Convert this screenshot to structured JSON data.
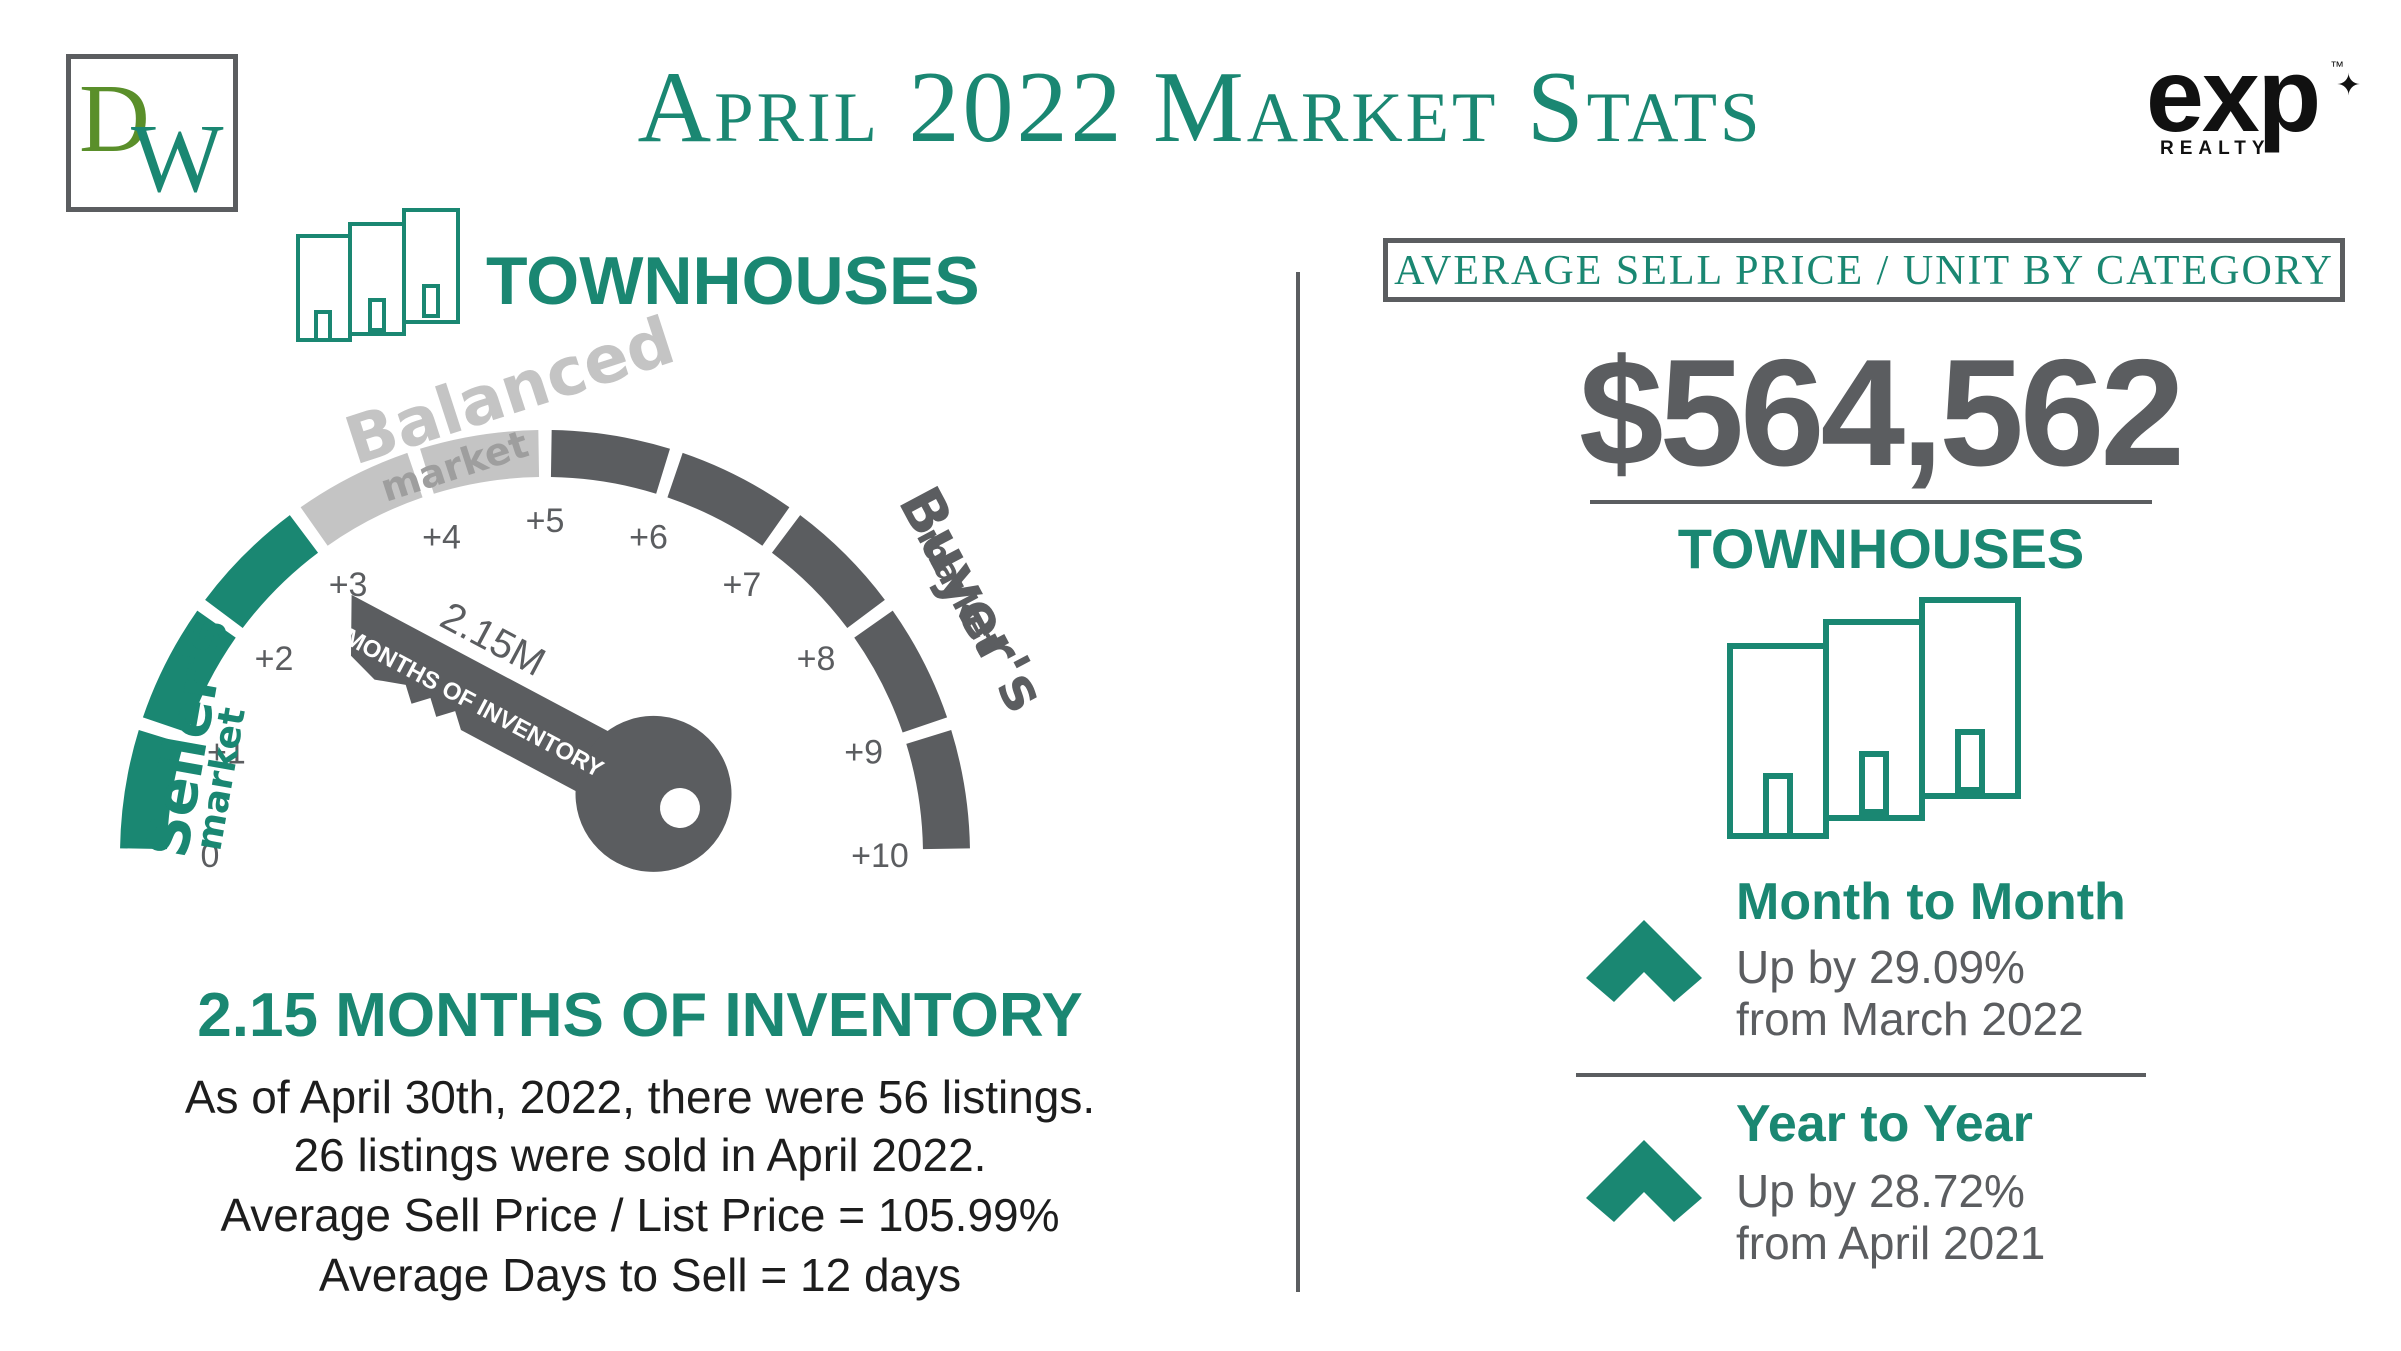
{
  "logo": {
    "letter_d": "D",
    "letter_w": "W"
  },
  "header": {
    "title": "April 2022 Market Stats"
  },
  "brand": {
    "name": "exp",
    "tm": "™",
    "sub": "REALTY"
  },
  "left": {
    "category": "TOWNHOUSES",
    "gauge": {
      "seller_label": "Seller's",
      "seller_sub": "market",
      "balanced_label": "Balanced",
      "balanced_sub": "market",
      "buyer_label": "Buyer's",
      "buyer_sub": "market",
      "ticks": [
        "0",
        "+1",
        "+2",
        "+3",
        "+4",
        "+5",
        "+6",
        "+7",
        "+8",
        "+9",
        "+10"
      ],
      "value": 2.15,
      "key_value": "2.15M",
      "key_label": "MONTHS OF INVENTORY"
    },
    "inventory_heading": "2.15 MONTHS OF INVENTORY",
    "lines": [
      "As of April 30th, 2022, there were 56 listings.",
      "26 listings were sold in April 2022.",
      "Average Sell Price / List Price = 105.99%",
      "Average Days to Sell = 12 days"
    ]
  },
  "right": {
    "category_box": "AVERAGE SELL PRICE / UNIT BY CATEGORY",
    "price": "$564,562",
    "category": "TOWNHOUSES",
    "month": {
      "title": "Month to Month",
      "line1": "Up by 29.09%",
      "line2": "from March 2022"
    },
    "year": {
      "title": "Year to Year",
      "line1": "Up by 28.72%",
      "line2": "from April 2021"
    }
  },
  "colors": {
    "green": "#1a8772",
    "gray": "#5b5d60",
    "light_gray": "#c4c4c4"
  }
}
